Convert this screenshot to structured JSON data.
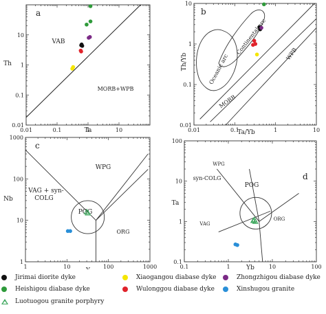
{
  "chart_data": [
    {
      "panel": "a",
      "type": "scatter",
      "xlabel": "Ta",
      "ylabel": "Th",
      "xscale": "log",
      "yscale": "log",
      "xlim": [
        0.01,
        100
      ],
      "ylim": [
        0.01,
        100
      ],
      "x_ticks": [
        "0.01",
        "0.1",
        "1",
        "10"
      ],
      "y_ticks": [
        "0.01",
        "0.1",
        "1",
        "10"
      ],
      "field_labels": [
        "VAB",
        "MORB+WPB"
      ],
      "points": [
        {
          "group": "Heishigou diabase dyke",
          "x": 1.2,
          "y": 90
        },
        {
          "group": "Heishigou diabase dyke",
          "x": 1.2,
          "y": 28
        },
        {
          "group": "Heishigou diabase dyke",
          "x": 0.9,
          "y": 22
        },
        {
          "group": "Zhongzhigou diabase dyke",
          "x": 1.15,
          "y": 8.5
        },
        {
          "group": "Zhongzhigou diabase dyke",
          "x": 1.05,
          "y": 8.0
        },
        {
          "group": "Jirimai diorite dyke",
          "x": 0.62,
          "y": 4.8
        },
        {
          "group": "Jirimai diorite dyke",
          "x": 0.65,
          "y": 4.3
        },
        {
          "group": "Jirimai diorite dyke",
          "x": 0.6,
          "y": 4.5
        },
        {
          "group": "Wulonggou diabase dyke",
          "x": 0.58,
          "y": 3.0
        },
        {
          "group": "Wulonggou diabase dyke",
          "x": 0.6,
          "y": 2.8
        },
        {
          "group": "Xiaogangou diabase dyke",
          "x": 0.33,
          "y": 0.85
        },
        {
          "group": "Xiaogangou diabase dyke",
          "x": 0.31,
          "y": 0.75
        }
      ]
    },
    {
      "panel": "b",
      "type": "scatter",
      "xlabel": "Ta/Yb",
      "ylabel": "Th/Yb",
      "xscale": "log",
      "yscale": "log",
      "xlim": [
        0.01,
        10
      ],
      "ylim": [
        0.01,
        10
      ],
      "x_ticks": [
        "0.01",
        "0.1",
        "1",
        "10"
      ],
      "y_ticks": [
        "0.01",
        "0.1",
        "1",
        "10"
      ],
      "field_labels": [
        "Oceanic arc",
        "Continental arc",
        "WPB",
        "MORB"
      ],
      "points": [
        {
          "group": "Heishigou diabase dyke",
          "x": 0.52,
          "y": 9.5
        },
        {
          "group": "Jirimai diorite dyke",
          "x": 0.4,
          "y": 2.6
        },
        {
          "group": "Jirimai diorite dyke",
          "x": 0.42,
          "y": 2.3
        },
        {
          "group": "Zhongzhigou diabase dyke",
          "x": 0.45,
          "y": 2.5
        },
        {
          "group": "Wulonggou diabase dyke",
          "x": 0.3,
          "y": 1.2
        },
        {
          "group": "Wulonggou diabase dyke",
          "x": 0.32,
          "y": 1.0
        },
        {
          "group": "Wulonggou diabase dyke",
          "x": 0.28,
          "y": 0.95
        },
        {
          "group": "Xiaogangou diabase dyke",
          "x": 0.35,
          "y": 0.55
        }
      ]
    },
    {
      "panel": "c",
      "type": "scatter",
      "xlabel": "Y",
      "ylabel": "Nb",
      "xscale": "log",
      "yscale": "log",
      "xlim": [
        1,
        1000
      ],
      "ylim": [
        1,
        1000
      ],
      "x_ticks": [
        "1",
        "10",
        "100",
        "1000"
      ],
      "y_ticks": [
        "1",
        "10",
        "100",
        "1000"
      ],
      "field_labels": [
        "WPG",
        "VAG + syn-",
        "COLG",
        "POG",
        "ORG"
      ],
      "points": [
        {
          "group": "Luotuogou granite porphyry",
          "x": 30,
          "y": 16
        },
        {
          "group": "Luotuogou granite porphyry",
          "x": 32,
          "y": 15
        },
        {
          "group": "Xinshugou granite",
          "x": 10.5,
          "y": 5.5
        },
        {
          "group": "Xinshugou granite",
          "x": 12,
          "y": 5.5
        }
      ]
    },
    {
      "panel": "d",
      "type": "scatter",
      "xlabel": "Yb",
      "ylabel": "Ta",
      "xscale": "log",
      "yscale": "log",
      "xlim": [
        0.1,
        100
      ],
      "ylim": [
        0.1,
        100
      ],
      "x_ticks": [
        "0.1",
        "1",
        "10",
        "100"
      ],
      "y_ticks": [
        "0.1",
        "1",
        "10",
        "100"
      ],
      "field_labels": [
        "WPG",
        "syn-COLG",
        "POG",
        "VAG",
        "ORG"
      ],
      "points": [
        {
          "group": "Luotuogou granite porphyry",
          "x": 3.7,
          "y": 1.05
        },
        {
          "group": "Luotuogou granite porphyry",
          "x": 4.1,
          "y": 1.0
        },
        {
          "group": "Luotuogou granite porphyry",
          "x": 3.9,
          "y": 1.1
        },
        {
          "group": "Xinshugou granite",
          "x": 1.45,
          "y": 0.27
        },
        {
          "group": "Xinshugou granite",
          "x": 1.6,
          "y": 0.26
        }
      ]
    }
  ],
  "legend": [
    {
      "label": "Jirimai diorite dyke",
      "color": "#111111",
      "marker": "circle"
    },
    {
      "label": "Xiaogangou diabase dyke",
      "color": "#f5e600",
      "marker": "circle"
    },
    {
      "label": "Zhongzhigou diabase dyke",
      "color": "#7b2a86",
      "marker": "circle"
    },
    {
      "label": "Heishigou diabase dyke",
      "color": "#2e9a3a",
      "marker": "circle"
    },
    {
      "label": "Wulonggou diabase dyke",
      "color": "#e0232b",
      "marker": "circle"
    },
    {
      "label": "Xinshugou granite",
      "color": "#2a8fd8",
      "marker": "circle"
    },
    {
      "label": "Luotuogou granite porphyry",
      "color": "#3aa55a",
      "marker": "triangle"
    }
  ]
}
